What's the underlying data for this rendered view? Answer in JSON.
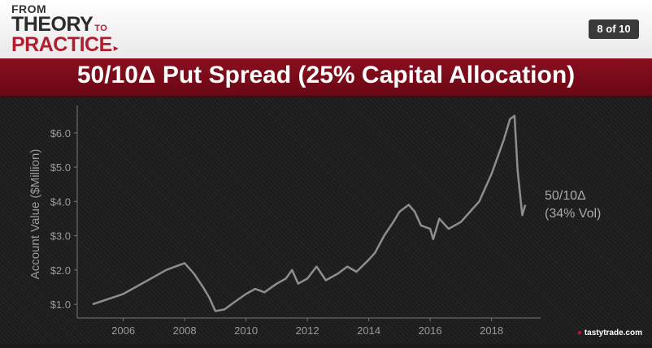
{
  "header": {
    "logo_from": "FROM",
    "logo_theory": "THEORY",
    "logo_to": "TO",
    "logo_practice": "PRACTICE",
    "page_indicator": "8 of 10"
  },
  "title": "50/10Δ Put Spread (25% Capital Allocation)",
  "brand": "tastytrade",
  "brand_suffix": ".com",
  "chart_data": {
    "type": "line",
    "title": "",
    "xlabel": "",
    "ylabel": "Account Value ($Million)",
    "xlim": [
      2004.5,
      2019.6
    ],
    "ylim": [
      0.6,
      6.8
    ],
    "xticks": [
      2006,
      2008,
      2010,
      2012,
      2014,
      2016,
      2018
    ],
    "xtick_labels": [
      "2006",
      "2008",
      "2010",
      "2012",
      "2014",
      "2016",
      "2018"
    ],
    "yticks": [
      1.0,
      2.0,
      3.0,
      4.0,
      5.0,
      6.0
    ],
    "ytick_labels": [
      "$1.0",
      "$2.0",
      "$3.0",
      "$4.0",
      "$5.0",
      "$6.0"
    ],
    "annotation": [
      "50/10Δ",
      "(34% Vol)"
    ],
    "grid": false,
    "series": [
      {
        "color": "#8e8e8e",
        "x": [
          2005.0,
          2005.5,
          2006.0,
          2006.5,
          2007.0,
          2007.4,
          2007.7,
          2008.0,
          2008.3,
          2008.6,
          2008.8,
          2009.0,
          2009.3,
          2009.6,
          2010.0,
          2010.3,
          2010.6,
          2011.0,
          2011.3,
          2011.5,
          2011.7,
          2012.0,
          2012.3,
          2012.6,
          2013.0,
          2013.3,
          2013.6,
          2014.0,
          2014.2,
          2014.5,
          2014.8,
          2015.0,
          2015.3,
          2015.5,
          2015.7,
          2016.0,
          2016.1,
          2016.3,
          2016.6,
          2017.0,
          2017.3,
          2017.6,
          2018.0,
          2018.2,
          2018.4,
          2018.6,
          2018.75,
          2018.85,
          2019.0,
          2019.1
        ],
        "values": [
          1.0,
          1.15,
          1.3,
          1.55,
          1.8,
          2.0,
          2.1,
          2.2,
          1.9,
          1.5,
          1.2,
          0.8,
          0.85,
          1.05,
          1.3,
          1.45,
          1.35,
          1.6,
          1.75,
          2.0,
          1.6,
          1.75,
          2.1,
          1.7,
          1.9,
          2.1,
          1.95,
          2.3,
          2.5,
          3.0,
          3.4,
          3.7,
          3.9,
          3.7,
          3.3,
          3.2,
          2.9,
          3.5,
          3.2,
          3.4,
          3.7,
          4.0,
          4.8,
          5.3,
          5.8,
          6.4,
          6.5,
          4.9,
          3.6,
          3.9
        ]
      }
    ]
  }
}
